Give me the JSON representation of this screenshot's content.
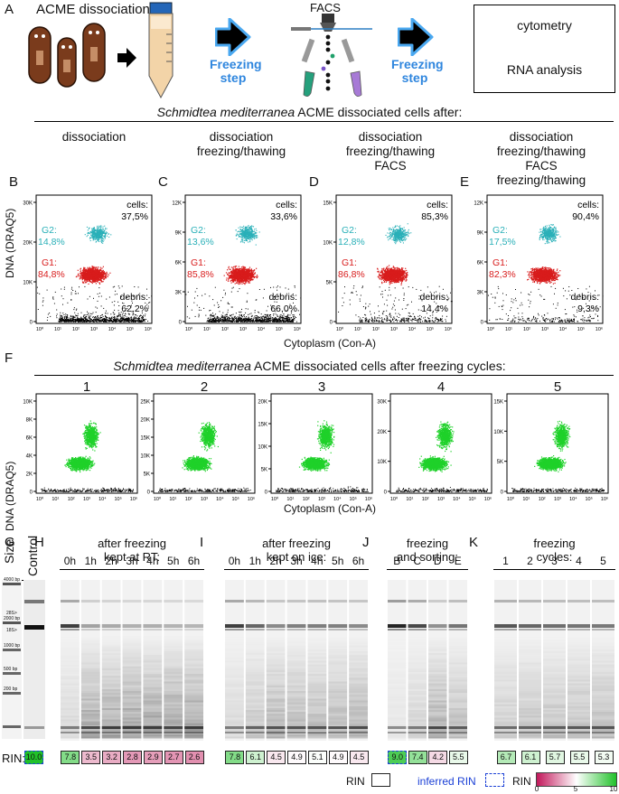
{
  "panelA": {
    "letter": "A",
    "title": "ACME dissociation",
    "freeze1": "Freezing step",
    "freeze2": "Freezing step",
    "facs": "FACS",
    "box1": "cytometry",
    "box2": "RNA analysis"
  },
  "header1": {
    "species": "Schmidtea mediterranea",
    "rest": " ACME dissociated cells after:"
  },
  "conditions": [
    "dissociation",
    "dissociation\nfreezing/thawing",
    "dissociation\nfreezing/thawing\nFACS",
    "dissociation\nfreezing/thawing\nFACS\nfreezing/thawing"
  ],
  "flowPanels": [
    {
      "letter": "B",
      "cells": "37,5%",
      "g2": "14,8%",
      "g1": "84,8%",
      "debris": "62,2%",
      "yticks": [
        "30K",
        "20K",
        "10K",
        "0"
      ]
    },
    {
      "letter": "C",
      "cells": "33,6%",
      "g2": "13,6%",
      "g1": "85,8%",
      "debris": "66,0%",
      "yticks": [
        "12K",
        "9K",
        "6K",
        "3K",
        "0"
      ]
    },
    {
      "letter": "D",
      "cells": "85,3%",
      "g2": "12,8%",
      "g1": "86,8%",
      "debris": "14,4%",
      "yticks": [
        "15K",
        "10K",
        "5K",
        "0"
      ]
    },
    {
      "letter": "E",
      "cells": "90,4%",
      "g2": "17,5%",
      "g1": "82,3%",
      "debris": "9,3%",
      "yticks": [
        "12K",
        "9K",
        "6K",
        "3K",
        "0"
      ]
    }
  ],
  "flowLabels": {
    "cells": "cells:",
    "g2": "G2:",
    "g1": "G1:",
    "debris": "debris:",
    "ylabel": "DNA (DRAQ5)",
    "xlabel": "Cytoplasm (Con-A)",
    "xticks": [
      "10⁰",
      "10¹",
      "10²",
      "10³",
      "10⁴",
      "10⁵",
      "10⁶"
    ]
  },
  "header2": {
    "letter": "F",
    "species": "Schmidtea mediterranea",
    "rest": " ACME dissociated cells after freezing cycles:"
  },
  "cyclePanels": [
    {
      "num": "1",
      "yticks": [
        "10K",
        "8K",
        "6K",
        "4K",
        "2K",
        "0"
      ]
    },
    {
      "num": "2",
      "yticks": [
        "25K",
        "20K",
        "15K",
        "10K",
        "5K",
        "0"
      ]
    },
    {
      "num": "3",
      "yticks": [
        "20K",
        "15K",
        "10K",
        "5K",
        "0"
      ]
    },
    {
      "num": "4",
      "yticks": [
        "30K",
        "20K",
        "10K",
        "0"
      ]
    },
    {
      "num": "5",
      "yticks": [
        "15K",
        "10K",
        "5K",
        "0"
      ]
    }
  ],
  "cycleAxes": {
    "ylabel": "DNA (DRAQ5)",
    "xlabel": "Cytoplasm (Con-A)",
    "xticks": [
      "10⁰",
      "10¹",
      "10²",
      "10³",
      "10⁴",
      "10⁵",
      "10⁶"
    ]
  },
  "gel": {
    "G": {
      "letter": "G",
      "size": "Size",
      "control": "Control",
      "ladder": [
        "4000 bp",
        "2000 bp",
        "1000 bp",
        "500 bp",
        "200 bp"
      ],
      "ctrl": [
        "28S>",
        "18S>"
      ],
      "rin": "10.0"
    },
    "H": {
      "letter": "H",
      "title": "after freezing\nkept at RT:",
      "lanes": [
        "0h",
        "1h",
        "2h",
        "3h",
        "4h",
        "5h",
        "6h"
      ],
      "rin": [
        "7.8",
        "3.5",
        "3.2",
        "2.8",
        "2.9",
        "2.7",
        "2.6"
      ]
    },
    "I": {
      "letter": "I",
      "title": "after freezing\nkept on ice:",
      "lanes": [
        "0h",
        "1h",
        "2h",
        "3h",
        "4h",
        "5h",
        "6h"
      ],
      "rin": [
        "7.8",
        "6.1",
        "4.5",
        "4.9",
        "5.1",
        "4.9",
        "4.5"
      ]
    },
    "J": {
      "letter": "J",
      "title": "freezing\nand sorting:",
      "lanes": [
        "B",
        "C",
        "D",
        "E"
      ],
      "rin": [
        "9.0",
        "7.4",
        "4.2",
        "5.5"
      ]
    },
    "K": {
      "letter": "K",
      "title": "freezing\ncycles:",
      "lanes": [
        "1",
        "2",
        "3",
        "4",
        "5"
      ],
      "rin": [
        "6.7",
        "6.1",
        "5.7",
        "5.5",
        "5.3"
      ]
    }
  },
  "rinLabel": "RIN:",
  "legend": {
    "rin": "RIN",
    "inferred": "inferred RIN",
    "scaleLabel": "RIN",
    "scale": [
      "0",
      "5",
      "10"
    ]
  },
  "colors": {
    "g1": "#d81c1c",
    "g2": "#2ab0b8",
    "green": "#1fd12a",
    "gelDark": "#111111",
    "rinLow": "#c2185b",
    "rinMid": "#ffffff",
    "rinHigh": "#21c12a",
    "freezeArrow": "#4aa8f0"
  }
}
